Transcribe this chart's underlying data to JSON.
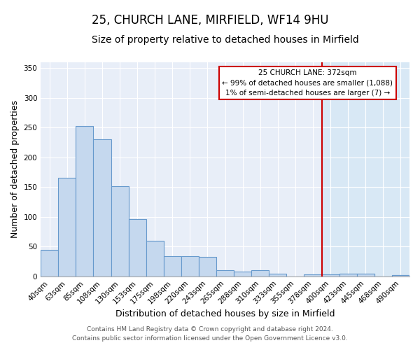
{
  "title": "25, CHURCH LANE, MIRFIELD, WF14 9HU",
  "subtitle": "Size of property relative to detached houses in Mirfield",
  "xlabel": "Distribution of detached houses by size in Mirfield",
  "ylabel": "Number of detached properties",
  "bar_labels": [
    "40sqm",
    "63sqm",
    "85sqm",
    "108sqm",
    "130sqm",
    "153sqm",
    "175sqm",
    "198sqm",
    "220sqm",
    "243sqm",
    "265sqm",
    "288sqm",
    "310sqm",
    "333sqm",
    "355sqm",
    "378sqm",
    "400sqm",
    "423sqm",
    "445sqm",
    "468sqm",
    "490sqm"
  ],
  "bar_values": [
    44,
    165,
    253,
    230,
    152,
    96,
    60,
    34,
    34,
    33,
    10,
    8,
    10,
    4,
    0,
    3,
    3,
    4,
    4,
    0,
    2
  ],
  "bar_color": "#c5d8ee",
  "bar_edge_color": "#6699cc",
  "vline_index": 15,
  "vline_color": "#cc0000",
  "annotation_text": "25 CHURCH LANE: 372sqm\n← 99% of detached houses are smaller (1,088)\n1% of semi-detached houses are larger (7) →",
  "annotation_box_color": "#ffffff",
  "annotation_box_edge_color": "#cc0000",
  "ylim": [
    0,
    360
  ],
  "yticks": [
    0,
    50,
    100,
    150,
    200,
    250,
    300,
    350
  ],
  "highlight_color": "#d8e8f5",
  "background_color": "#e8eef8",
  "footer_line1": "Contains HM Land Registry data © Crown copyright and database right 2024.",
  "footer_line2": "Contains public sector information licensed under the Open Government Licence v3.0.",
  "title_fontsize": 12,
  "subtitle_fontsize": 10,
  "axis_label_fontsize": 9,
  "tick_fontsize": 7.5,
  "footer_fontsize": 6.5
}
